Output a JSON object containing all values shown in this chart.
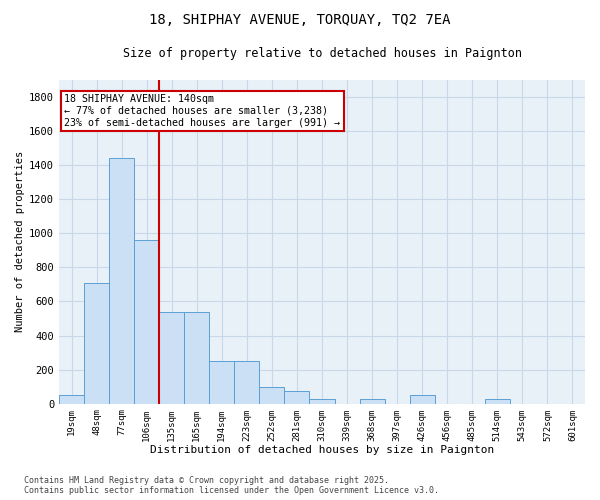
{
  "title1": "18, SHIPHAY AVENUE, TORQUAY, TQ2 7EA",
  "title2": "Size of property relative to detached houses in Paignton",
  "xlabel": "Distribution of detached houses by size in Paignton",
  "ylabel": "Number of detached properties",
  "categories": [
    "19sqm",
    "48sqm",
    "77sqm",
    "106sqm",
    "135sqm",
    "165sqm",
    "194sqm",
    "223sqm",
    "252sqm",
    "281sqm",
    "310sqm",
    "339sqm",
    "368sqm",
    "397sqm",
    "426sqm",
    "456sqm",
    "485sqm",
    "514sqm",
    "543sqm",
    "572sqm",
    "601sqm"
  ],
  "values": [
    50,
    710,
    1440,
    960,
    540,
    540,
    250,
    250,
    100,
    75,
    25,
    0,
    25,
    0,
    50,
    0,
    0,
    30,
    0,
    0,
    0
  ],
  "bar_color": "#cce0f5",
  "bar_edge_color": "#5a9fd4",
  "grid_color": "#c8d8e8",
  "bg_color": "#e8f0f8",
  "annotation_text": "18 SHIPHAY AVENUE: 140sqm\n← 77% of detached houses are smaller (3,238)\n23% of semi-detached houses are larger (991) →",
  "annotation_box_color": "#ffffff",
  "annotation_box_edge": "#cc0000",
  "vline_x": 4,
  "vline_color": "#cc0000",
  "ylim": [
    0,
    1900
  ],
  "yticks": [
    0,
    200,
    400,
    600,
    800,
    1000,
    1200,
    1400,
    1600,
    1800
  ],
  "footer": "Contains HM Land Registry data © Crown copyright and database right 2025.\nContains public sector information licensed under the Open Government Licence v3.0."
}
